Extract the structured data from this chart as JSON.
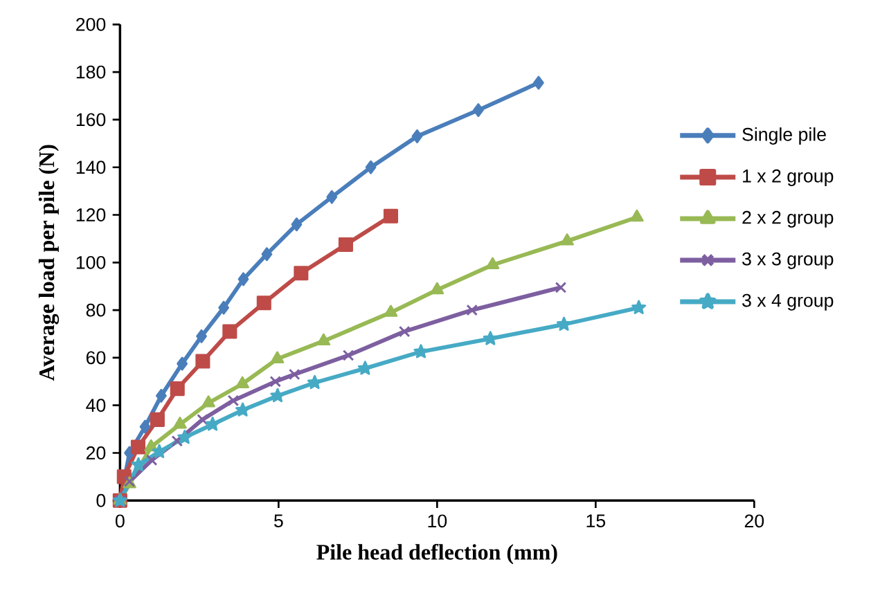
{
  "chart_data": {
    "type": "line",
    "xlabel": "Pile head deflection (mm)",
    "ylabel": "Average load per pile (N)",
    "xlim": [
      0,
      20
    ],
    "xticks": [
      0,
      5,
      10,
      15,
      20
    ],
    "ylim": [
      0,
      200
    ],
    "yticks": [
      0,
      20,
      40,
      60,
      80,
      100,
      120,
      140,
      160,
      180,
      200
    ],
    "grid": false,
    "legend": "right",
    "series": [
      {
        "name": "Single pile",
        "color": "#4a7ebb",
        "marker": "diamond",
        "x": [
          0,
          0.3,
          0.79,
          1.3,
          1.96,
          2.57,
          3.27,
          3.89,
          4.63,
          5.57,
          6.68,
          7.91,
          9.37,
          11.3,
          13.2
        ],
        "values": [
          0,
          20,
          31,
          44,
          57.5,
          69,
          81,
          93,
          103.5,
          116,
          127.5,
          140,
          153,
          164,
          175.5
        ]
      },
      {
        "name": "1 x 2 group",
        "color": "#be4b48",
        "marker": "square",
        "x": [
          0,
          0.13,
          0.57,
          1.18,
          1.81,
          2.61,
          3.46,
          4.54,
          5.71,
          7.12,
          8.54
        ],
        "values": [
          0,
          10,
          22.5,
          34,
          47,
          58.5,
          71,
          83,
          95.5,
          107.5,
          119.5
        ]
      },
      {
        "name": "2 x 2 group",
        "color": "#98b954",
        "marker": "triangle",
        "x": [
          0,
          0.3,
          0.98,
          1.89,
          2.79,
          3.86,
          4.96,
          6.42,
          8.54,
          10.0,
          11.75,
          14.1,
          16.3
        ],
        "values": [
          0,
          7,
          22.5,
          32,
          41,
          49,
          59.5,
          67,
          79,
          88.5,
          99,
          109,
          119
        ]
      },
      {
        "name": "3 x 3 group",
        "color": "#7d5fa0",
        "marker": "cross",
        "x": [
          0,
          0.3,
          1.0,
          1.8,
          2.6,
          3.57,
          4.9,
          5.5,
          7.2,
          8.97,
          11.1,
          13.9
        ],
        "values": [
          0,
          8,
          17,
          25,
          34,
          42,
          50,
          53,
          61,
          71,
          80,
          89.5
        ]
      },
      {
        "name": "3 x 4 group",
        "color": "#46aac5",
        "marker": "star",
        "x": [
          0,
          0.58,
          1.24,
          2.04,
          2.92,
          3.87,
          4.97,
          6.14,
          7.73,
          9.49,
          11.68,
          14.0,
          16.36
        ],
        "values": [
          0,
          15,
          20.5,
          26.5,
          32,
          38,
          44,
          49.5,
          55.5,
          62.5,
          68,
          74,
          81
        ]
      }
    ]
  }
}
